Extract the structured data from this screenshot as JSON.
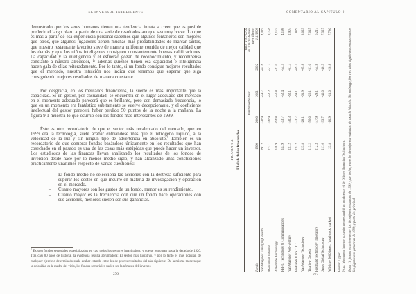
{
  "left_page": {
    "header": "EL INVERSOR INTELIGENTE",
    "paragraph_1": "demostrado que los seres humanos tienen una tendencia innata a creer que es posible predecir el largo plazo a partir de una serie de resultados aunque sea muy breve. Lo que es más a partir de esa experiencia personal sabemos que algunos fontaneros son mejores que otros, que algunos jugadores tienen muchas más probabilidades de marcar tantos, que nuestro restaurante favorito sirve de manera uniforme comida de mejor calidad que los demás y que los niños inteligentes consiguen constantemente buenas calificaciones. La capacidad y la inteligencia y el esfuerzo gozan de reconocimiento, y recompensa constante a nuestro alrededor, y además quienes tienen esa capacidad e inteligencia hacen gala de ellas reiteradamente. Por lo tanto, si un fondo consigue mejores resultados que el mercado, nuestra intuición nos indica que tenemos que esperar que siga consiguiendo mejores resultados de manera constante.",
    "paragraph_2": "Por desgracia, en los mercados financieros, la suerte es más importante que la capacidad. Si un gestor, por casualidad, se encuentra en el lugar adecuado del mercado en el momento adecuado parecerá que es brillante, pero con demasiada frecuencia, lo que en un momento era fantástico súbitamente se vuelve decepcionante, y el coeficiente intelectual del gestor parecerá haber perdido 50 puntos de la noche a la mañana. La figura 9.1 muestra lo que ocurrió con los fondos más interesantes de 1999.",
    "paragraph_3_before_sup": "Éste es otro recordatorio de que el sector más recalentado del mercado, que en 1999 era la tecnología, suele acabar enfriándose más que el nitrógeno líquido, a la velocidad de la luz y sin ningún tipo de advertencia en absoluto.",
    "paragraph_3_sup": "1",
    "paragraph_3_after_sup": " También es un recordatorio de que comprar fondos basándose únicamente en los resultados que han cosechado en el pasado es una de las cosas más estúpidas que puede hacer un inversor. Los estudiosos de las finanzas llevan analizando los resultados de los fondos de inversión desde hace por lo menos medio siglo, y han alcanzado unas conclusiones prácticamente unánimes respecto de varias cuestiones:",
    "list_dash": "–",
    "list_items": [
      "El fondo medio no selecciona las acciones con la destreza suficiente para superar los costes en que incurre en materia de investigación y operación en el mercado.",
      "Cuanto mayores son los gastos de un fondo, menor es su rendimiento.",
      "Cuanto mayor es la frecuencia con que un fondo hace operaciones con sus acciones, menores suelen ser sus ganancias."
    ],
    "footnote_marker": "1",
    "footnote": " Existen fondos sectoriales especializados en casi todos los sectores imaginables, y que se remontan hasta la década de 1920. Tras casi 80 años de historia, la evidencia resulta abrumadora: El sector más lucrativo, y por lo tanto el más popular, de cualquier ejercicio determinado suele acabar estando entre los de peores resultados del año siguiente. De la misma manera que la ociosidad es la madre del vicio, los fondos sectoriales suelen ser la némesis del inversor.",
    "page_number": "276"
  },
  "right_page": {
    "header": "COMENTARIO AL CAPÍTULO 9",
    "page_number": "277",
    "figure": {
      "label": "FIGURA 9.1",
      "title": "El club de los fracasados",
      "col_fondo": "Fondo",
      "col_1999": "1999",
      "returns_group_label": "Rendimiento total",
      "col_2000": "2000",
      "col_2001": "2001",
      "col_2002": "2002",
      "valor_header_lines": [
        "Valor a 31/12/02",
        "de 10.000 dólares",
        "invertidos el",
        "1/1/1999"
      ],
      "source": "Fuente: Lipper.",
      "note": "Nota: Monument Internet posteriormente cambió su nombre por el de Orbitex Emerging Technology.",
      "comment": "Estos 10 fondos estuvieron entre los de mejores resultados de 1999 y, de hecho, entre los de mejores resultados de toda la historia. Sin embargo, los tres años siguientes contrarrestaron las gigantescas ganancias de 1999, y parte del principal."
    }
  },
  "chart_data": {
    "type": "table",
    "title": "FIGURA 9.1 — El club de los fracasados",
    "columns": [
      "Fondo",
      "1999",
      "2000",
      "2001",
      "2002",
      "Valor a 31/12/02 de 10.000 dólares invertidos el 1/1/1999"
    ],
    "column_group": {
      "label": "Rendimiento total",
      "spans": [
        "2000",
        "2001",
        "2002"
      ]
    },
    "rows": [
      [
        "Van Wagoner Emerging Growth",
        "291.2",
        "-20.9",
        "-59.7",
        "-64.6",
        "4,419"
      ],
      [
        "Monument Internet",
        "273.1",
        "-56.9",
        "-52.2",
        "-51.2",
        "3,756"
      ],
      [
        "Amerindo Technology",
        "248.9",
        "-64.8",
        "-50.8",
        "-31.0",
        "4,175"
      ],
      [
        "PBHG Technology & Communications",
        "243.9",
        "-43.7",
        "-52.4",
        "-54.5",
        "4,198"
      ],
      [
        "Van Wagoner Post-Venture",
        "237.2",
        "-30.3",
        "-62.1",
        "-67.3",
        "2,907"
      ],
      [
        "ProFunds Ultra OTC",
        "233.2",
        "-73.7",
        "-69.1",
        "-69.4",
        "829"
      ],
      [
        "Van Wagoner Technology",
        "223.8",
        "-28.1",
        "-61.9",
        "-65.8",
        "3,029"
      ],
      [
        "Thurlow Growth",
        "213.2",
        "-56.0",
        "-26.1",
        "-31.0",
        "7,015"
      ],
      [
        "Firsthand Technology Innovators",
        "212.3",
        "-37.9",
        "-29.1",
        "-54.8",
        "6,217"
      ],
      [
        "Janus Global Technology",
        "211.6",
        "-33.7",
        "-40.0",
        "-40.9",
        "7,327"
      ],
      [
        "Wilshire 5000 index (total stock market)",
        "23.8",
        "-10.9",
        "-11.0",
        "-20.8",
        "7,780"
      ]
    ]
  }
}
